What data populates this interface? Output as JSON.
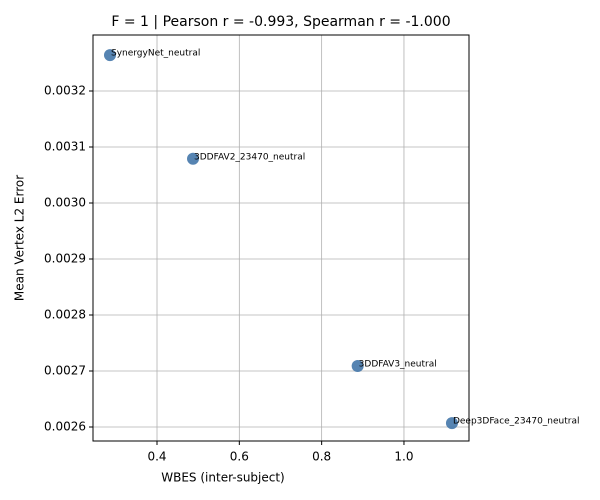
{
  "chart_data": {
    "type": "scatter",
    "title": "F = 1 | Pearson r = -0.993, Spearman r = -1.000",
    "x_label": "WBES (inter-subject)",
    "y_label": "Mean Vertex L2 Error",
    "series": [
      {
        "color": "#4477aa",
        "point_labels": [
          "SynergyNet_neutral",
          "3DDFAV2_23470_neutral",
          "3DDFAV3_neutral",
          "Deep3DFace_23470_neutral"
        ],
        "x": [
          0.2858,
          0.4875,
          0.8875,
          1.1166
        ],
        "values": [
          0.003264,
          0.003079,
          0.002709,
          0.002607
        ]
      }
    ],
    "xlim": [
      0.2445,
      1.158
    ],
    "ylim": [
      0.002575,
      0.0033
    ],
    "xticks": [
      0.4,
      0.6,
      0.8,
      {
        "value": 1.0,
        "label": "1.0"
      }
    ],
    "yticks": [
      0.0026,
      0.0027,
      0.0028,
      0.0029,
      {
        "value": 0.003,
        "label": "0.0030"
      },
      0.0031,
      0.0032
    ],
    "grid": true
  }
}
